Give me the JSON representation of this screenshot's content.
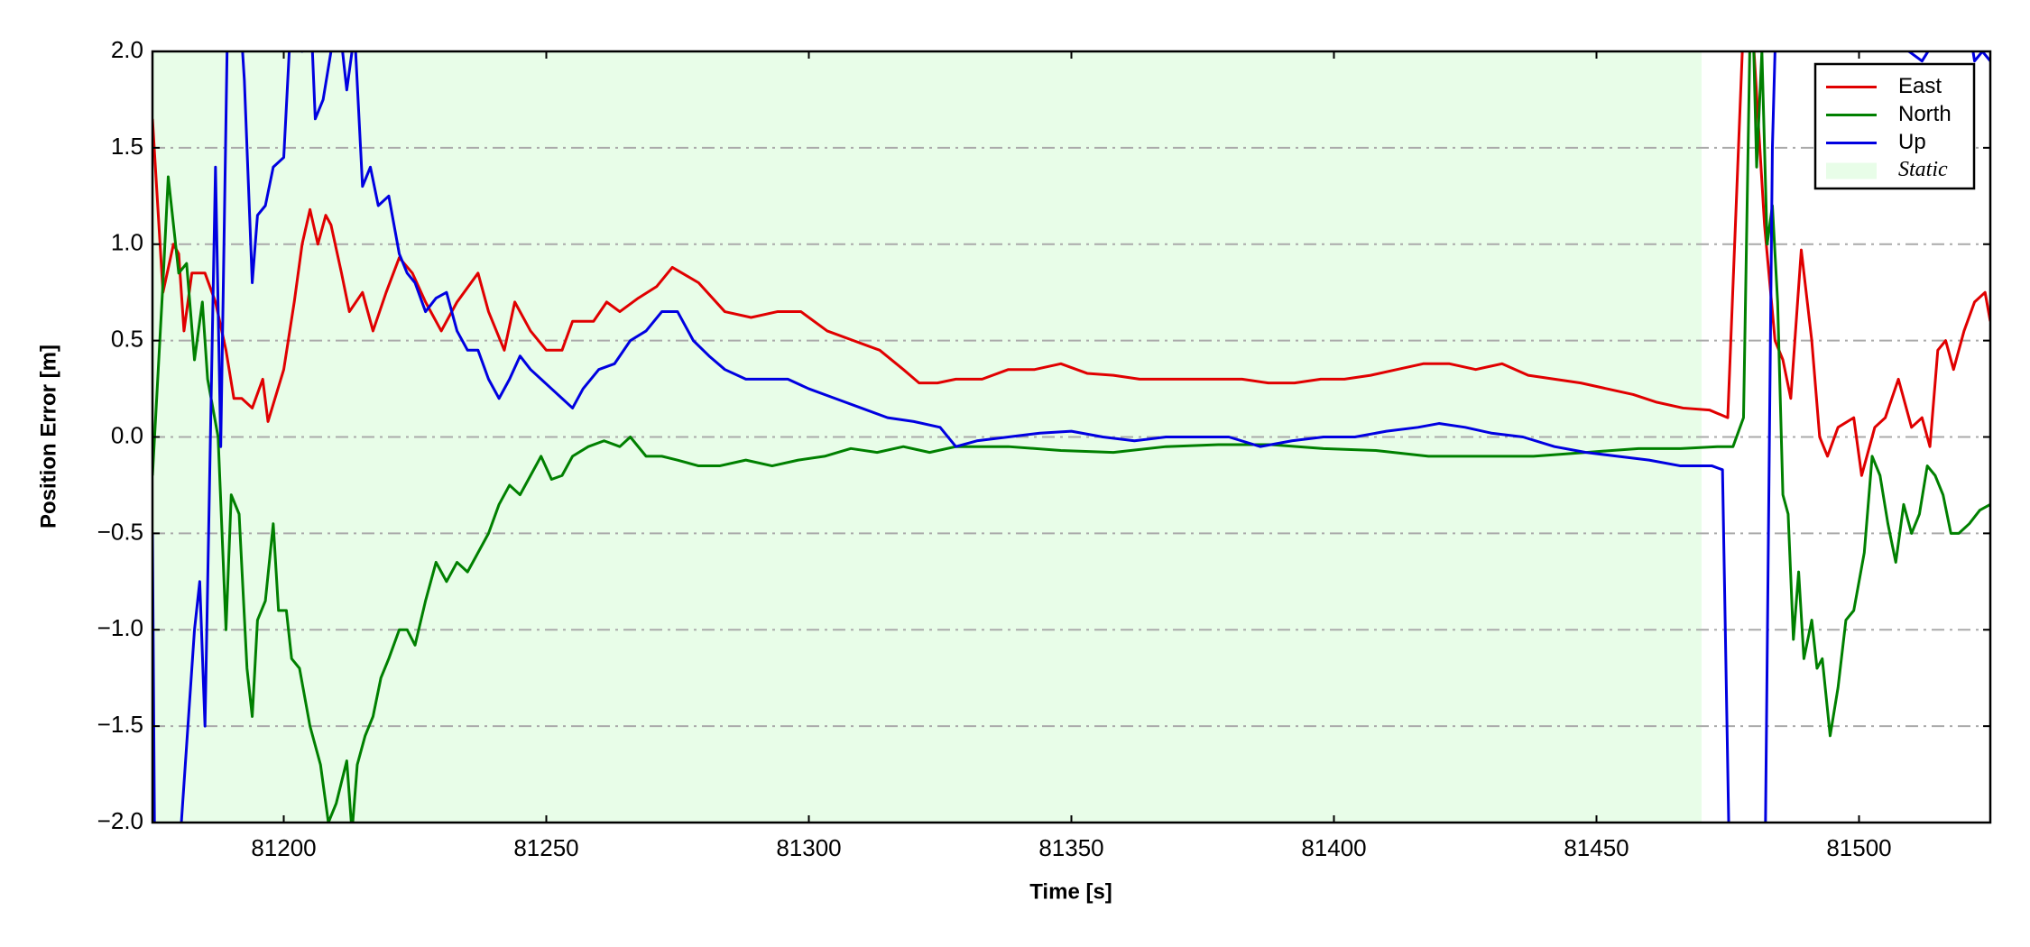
{
  "chart_data": {
    "type": "line",
    "xlabel": "Time [s]",
    "ylabel": "Position Error [m]",
    "xlim": [
      81175,
      81525
    ],
    "ylim": [
      -2,
      2
    ],
    "xticks": [
      81200,
      81250,
      81300,
      81350,
      81400,
      81450,
      81500
    ],
    "yticks": [
      {
        "value": -2,
        "label": "−2.0"
      },
      {
        "value": -1.5,
        "label": "−1.5"
      },
      {
        "value": -1,
        "label": "−1.0"
      },
      {
        "value": -0.5,
        "label": "−0.5"
      },
      {
        "value": 0,
        "label": "0.0"
      },
      {
        "value": 0.5,
        "label": "0.5"
      },
      {
        "value": 1,
        "label": "1.0"
      },
      {
        "value": 1.5,
        "label": "1.5"
      },
      {
        "value": 2,
        "label": "2.0"
      }
    ],
    "grid": "y",
    "legend": "upper right",
    "spans": [
      {
        "name": "Static",
        "color": "#e8fde8",
        "start": 81175,
        "end": 81470
      }
    ],
    "series": [
      {
        "name": "East",
        "color": "#e00000",
        "x": [
          81175,
          81177,
          81179,
          81180,
          81181,
          81182.5,
          81185,
          81187,
          81189,
          81190.5,
          81192,
          81194,
          81196,
          81197,
          81200,
          81202,
          81203.5,
          81205,
          81206.5,
          81208,
          81209,
          81211,
          81212.5,
          81215,
          81217,
          81219.5,
          81222,
          81224.5,
          81227,
          81230,
          81233,
          81237,
          81239,
          81242,
          81244,
          81247,
          81250,
          81253,
          81255,
          81259,
          81261.5,
          81264,
          81267.5,
          81271,
          81274,
          81279,
          81284,
          81289,
          81294,
          81298.5,
          81303.5,
          81308.5,
          81313.5,
          81318,
          81321,
          81324.5,
          81328,
          81333,
          81338,
          81343,
          81348,
          81353,
          81358,
          81363,
          81373,
          81382.5,
          81387.5,
          81392.5,
          81397.5,
          81402,
          81407,
          81412,
          81417,
          81422,
          81427,
          81432,
          81437,
          81442,
          81447,
          81452,
          81457,
          81461.5,
          81466.5,
          81471.5,
          81475,
          81478.5,
          81480,
          81482,
          81484,
          81485.5,
          81487,
          81489,
          81491,
          81492.5,
          81494,
          81496,
          81499,
          81500.5,
          81503,
          81505,
          81507.5,
          81510,
          81512,
          81513.5,
          81515,
          81516.5,
          81518,
          81520,
          81522,
          81524,
          81525
        ],
        "values": [
          1.65,
          0.75,
          1.0,
          0.95,
          0.55,
          0.85,
          0.85,
          0.7,
          0.45,
          0.2,
          0.2,
          0.15,
          0.3,
          0.08,
          0.35,
          0.7,
          1.0,
          1.18,
          1.0,
          1.15,
          1.1,
          0.85,
          0.65,
          0.75,
          0.55,
          0.75,
          0.93,
          0.85,
          0.7,
          0.55,
          0.7,
          0.85,
          0.65,
          0.45,
          0.7,
          0.55,
          0.45,
          0.45,
          0.6,
          0.6,
          0.7,
          0.65,
          0.72,
          0.78,
          0.88,
          0.8,
          0.65,
          0.62,
          0.65,
          0.65,
          0.55,
          0.5,
          0.45,
          0.35,
          0.28,
          0.28,
          0.3,
          0.3,
          0.35,
          0.35,
          0.38,
          0.33,
          0.32,
          0.3,
          0.3,
          0.3,
          0.28,
          0.28,
          0.3,
          0.3,
          0.32,
          0.35,
          0.38,
          0.38,
          0.35,
          0.38,
          0.32,
          0.3,
          0.28,
          0.25,
          0.22,
          0.18,
          0.15,
          0.14,
          0.1,
          2.5,
          2.0,
          1.1,
          0.5,
          0.4,
          0.2,
          0.97,
          0.5,
          0.0,
          -0.1,
          0.05,
          0.1,
          -0.2,
          0.05,
          0.1,
          0.3,
          0.05,
          0.1,
          -0.05,
          0.45,
          0.5,
          0.35,
          0.55,
          0.7,
          0.75,
          0.6
        ]
      },
      {
        "name": "North",
        "color": "#008000",
        "x": [
          81175,
          81177,
          81178,
          81180,
          81181.5,
          81183,
          81184.5,
          81185.5,
          81187.5,
          81189,
          81190,
          81191.5,
          81193,
          81194,
          81195,
          81196.5,
          81198,
          81199,
          81200.5,
          81201.5,
          81203,
          81205,
          81207,
          81208.5,
          81210,
          81212,
          81213,
          81214,
          81215.5,
          81217,
          81218.5,
          81220,
          81222,
          81223.5,
          81225,
          81227,
          81229,
          81231,
          81233,
          81235,
          81237,
          81239,
          81241,
          81243,
          81245,
          81247,
          81249,
          81251,
          81253,
          81255,
          81258,
          81261,
          81264,
          81266,
          81269,
          81272,
          81275,
          81279,
          81283,
          81288,
          81293,
          81298,
          81303,
          81308,
          81313,
          81318,
          81323,
          81328,
          81338,
          81348,
          81358,
          81368,
          81378,
          81388,
          81398,
          81408,
          81418,
          81428,
          81438,
          81448,
          81458,
          81466,
          81473,
          81476,
          81478,
          81479.5,
          81480.5,
          81481.5,
          81482.5,
          81483.5,
          81484.5,
          81485.5,
          81486.5,
          81487.5,
          81488.5,
          81489.5,
          81491,
          81492,
          81493,
          81494.5,
          81496,
          81497.5,
          81499,
          81501,
          81502.5,
          81504,
          81505.5,
          81507,
          81508.5,
          81510,
          81511.5,
          81513,
          81514.5,
          81516,
          81517.5,
          81519,
          81521,
          81523,
          81525
        ],
        "values": [
          -0.2,
          0.8,
          1.35,
          0.85,
          0.9,
          0.4,
          0.7,
          0.3,
          0.0,
          -1.0,
          -0.3,
          -0.4,
          -1.2,
          -1.45,
          -0.95,
          -0.85,
          -0.45,
          -0.9,
          -0.9,
          -1.15,
          -1.2,
          -1.5,
          -1.7,
          -2.0,
          -1.9,
          -1.68,
          -2.05,
          -1.7,
          -1.55,
          -1.45,
          -1.25,
          -1.15,
          -1.0,
          -1.0,
          -1.08,
          -0.85,
          -0.65,
          -0.75,
          -0.65,
          -0.7,
          -0.6,
          -0.5,
          -0.35,
          -0.25,
          -0.3,
          -0.2,
          -0.1,
          -0.22,
          -0.2,
          -0.1,
          -0.05,
          -0.02,
          -0.05,
          0.0,
          -0.1,
          -0.1,
          -0.12,
          -0.15,
          -0.15,
          -0.12,
          -0.15,
          -0.12,
          -0.1,
          -0.06,
          -0.08,
          -0.05,
          -0.08,
          -0.05,
          -0.05,
          -0.07,
          -0.08,
          -0.05,
          -0.04,
          -0.04,
          -0.06,
          -0.07,
          -0.1,
          -0.1,
          -0.1,
          -0.08,
          -0.06,
          -0.06,
          -0.05,
          -0.05,
          0.1,
          2.5,
          1.4,
          2.0,
          1.0,
          1.2,
          0.7,
          -0.3,
          -0.4,
          -1.05,
          -0.7,
          -1.15,
          -0.95,
          -1.2,
          -1.15,
          -1.55,
          -1.3,
          -0.95,
          -0.9,
          -0.6,
          -0.1,
          -0.2,
          -0.45,
          -0.65,
          -0.35,
          -0.5,
          -0.4,
          -0.15,
          -0.2,
          -0.3,
          -0.5,
          -0.5,
          -0.45,
          -0.38,
          -0.35
        ]
      },
      {
        "name": "Up",
        "color": "#0000e0",
        "x": [
          81175,
          81175.5,
          81177,
          81180.5,
          81183,
          81184,
          81185,
          81187,
          81188,
          81189.5,
          81191,
          81192.5,
          81194,
          81195,
          81196.5,
          81198,
          81200,
          81202,
          81203.5,
          81205,
          81206,
          81207.5,
          81209,
          81210,
          81212,
          81213.5,
          81215,
          81216.5,
          81218,
          81220,
          81222,
          81223.5,
          81225,
          81227,
          81229,
          81231,
          81233,
          81235,
          81237,
          81239,
          81241,
          81243,
          81245,
          81247,
          81249,
          81251,
          81253,
          81255,
          81257,
          81260,
          81263,
          81266,
          81269,
          81272,
          81275,
          81278,
          81281,
          81284,
          81288,
          81292,
          81296,
          81300,
          81305,
          81310,
          81315,
          81320,
          81325,
          81328,
          81332,
          81338,
          81344,
          81350,
          81356,
          81362,
          81368,
          81374,
          81380,
          81386,
          81392,
          81398,
          81404,
          81410,
          81416,
          81420,
          81425,
          81430,
          81436,
          81442,
          81448,
          81454,
          81460,
          81466,
          81472,
          81474,
          81475.5,
          81482,
          81483.5,
          81484.5,
          81512,
          81520,
          81522,
          81523.5,
          81525
        ],
        "values": [
          -0.5,
          -2.5,
          -2.5,
          -2.0,
          -1.0,
          -0.75,
          -1.5,
          1.4,
          -0.05,
          2.5,
          2.5,
          1.85,
          0.8,
          1.15,
          1.2,
          1.4,
          1.45,
          2.5,
          2.0,
          2.3,
          1.65,
          1.75,
          2.0,
          2.3,
          1.8,
          2.1,
          1.3,
          1.4,
          1.2,
          1.25,
          0.95,
          0.85,
          0.8,
          0.65,
          0.72,
          0.75,
          0.55,
          0.45,
          0.45,
          0.3,
          0.2,
          0.3,
          0.42,
          0.35,
          0.3,
          0.25,
          0.2,
          0.15,
          0.25,
          0.35,
          0.38,
          0.5,
          0.55,
          0.65,
          0.65,
          0.5,
          0.42,
          0.35,
          0.3,
          0.3,
          0.3,
          0.25,
          0.2,
          0.15,
          0.1,
          0.08,
          0.05,
          -0.05,
          -0.02,
          0.0,
          0.02,
          0.03,
          0.0,
          -0.02,
          0.0,
          0.0,
          0.0,
          -0.05,
          -0.02,
          0.0,
          0.0,
          0.03,
          0.05,
          0.07,
          0.05,
          0.02,
          0.0,
          -0.05,
          -0.08,
          -0.1,
          -0.12,
          -0.15,
          -0.15,
          -0.17,
          -2.5,
          -2.5,
          1.5,
          2.5,
          1.95,
          2.3,
          1.95,
          2.0,
          1.95
        ]
      }
    ]
  }
}
